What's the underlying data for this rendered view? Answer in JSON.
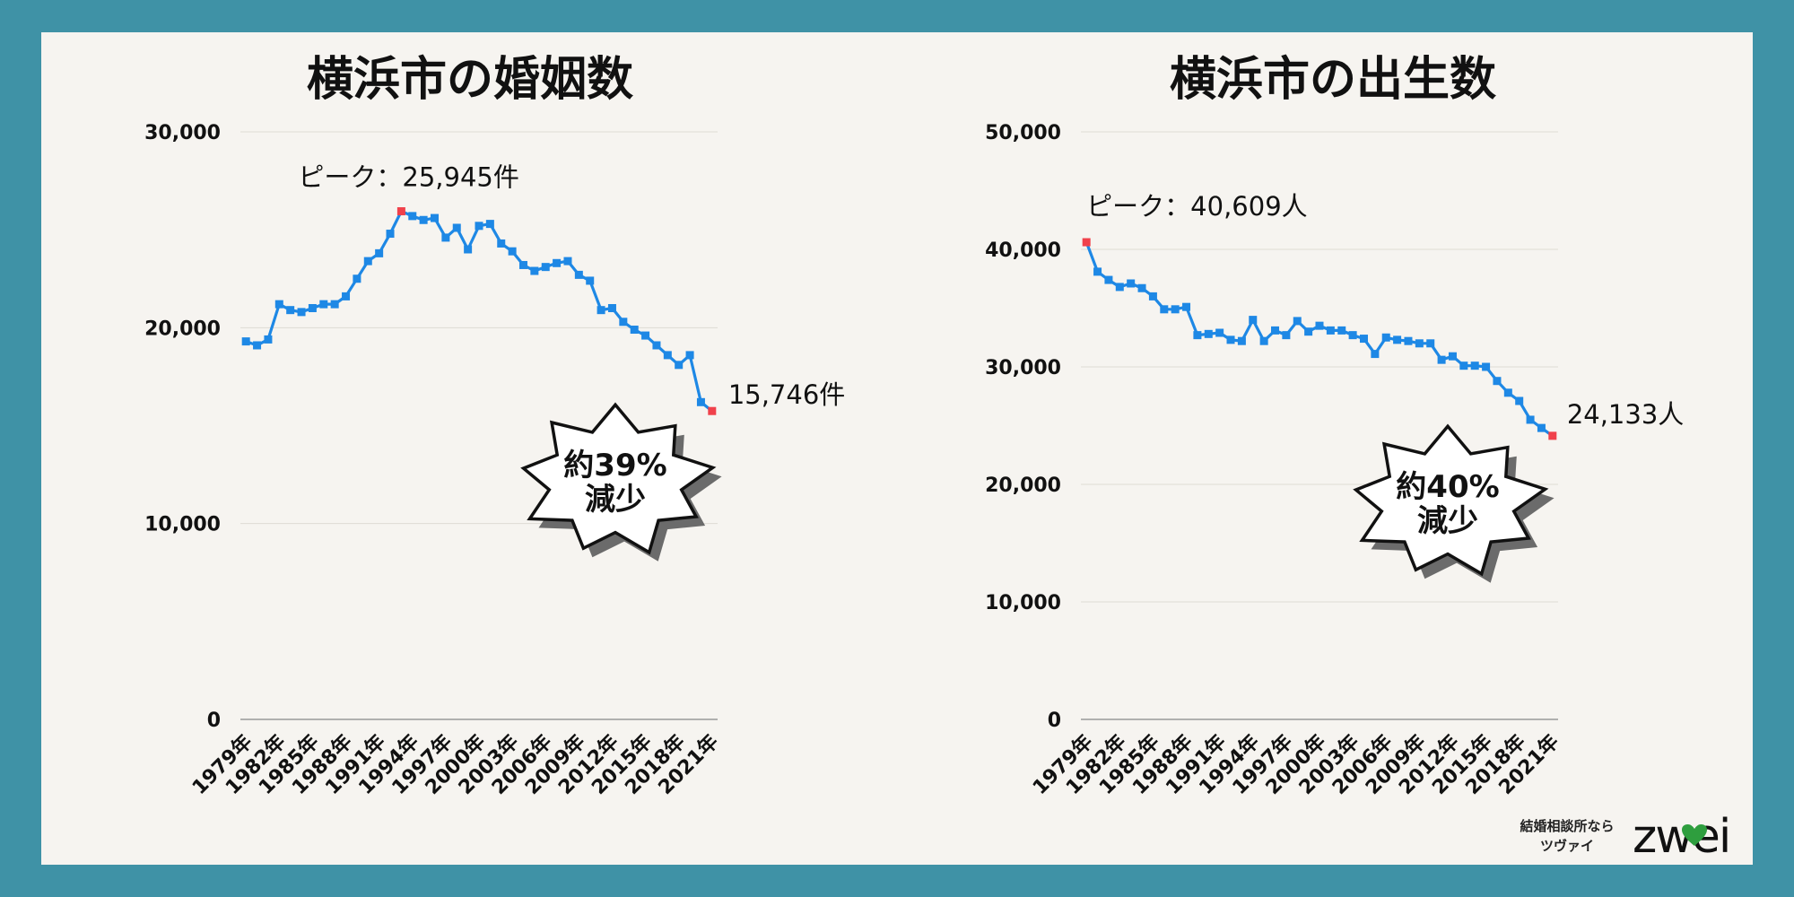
{
  "chart_data": [
    {
      "type": "line",
      "title": "横浜市の婚姻数",
      "ylim": [
        0,
        30000
      ],
      "yticks": [
        "0",
        "10,000",
        "20,000",
        "30,000"
      ],
      "x": [
        "1979年",
        "1980年",
        "1981年",
        "1982年",
        "1983年",
        "1984年",
        "1985年",
        "1986年",
        "1987年",
        "1988年",
        "1989年",
        "1990年",
        "1991年",
        "1992年",
        "1993年",
        "1994年",
        "1995年",
        "1996年",
        "1997年",
        "1998年",
        "1999年",
        "2000年",
        "2001年",
        "2002年",
        "2003年",
        "2004年",
        "2005年",
        "2006年",
        "2007年",
        "2008年",
        "2009年",
        "2010年",
        "2011年",
        "2012年",
        "2013年",
        "2014年",
        "2015年",
        "2016年",
        "2017年",
        "2018年",
        "2019年",
        "2020年",
        "2021年"
      ],
      "xticks": [
        "1979年",
        "1982年",
        "1985年",
        "1988年",
        "1991年",
        "1994年",
        "1997年",
        "2000年",
        "2003年",
        "2006年",
        "2009年",
        "2012年",
        "2015年",
        "2018年",
        "2021年"
      ],
      "values": [
        19300,
        19100,
        19400,
        21200,
        20900,
        20800,
        21000,
        21200,
        21200,
        21600,
        22500,
        23400,
        23800,
        24800,
        25945,
        25700,
        25500,
        25600,
        24600,
        25100,
        24000,
        25200,
        25300,
        24300,
        23900,
        23200,
        22900,
        23100,
        23300,
        23400,
        22700,
        22400,
        20900,
        21000,
        20300,
        19900,
        19600,
        19100,
        18600,
        18100,
        18600,
        16200,
        15746
      ],
      "grid": true,
      "annotations": {
        "peak": "ピーク：25,945件",
        "last": "15,746件"
      },
      "burst": [
        "約39%",
        "減少"
      ],
      "colors": {
        "line": "#1e88e5",
        "highlight": "#f0414b"
      }
    },
    {
      "type": "line",
      "title": "横浜市の出生数",
      "ylim": [
        0,
        50000
      ],
      "yticks": [
        "0",
        "10,000",
        "20,000",
        "30,000",
        "40,000",
        "50,000"
      ],
      "x": [
        "1979年",
        "1980年",
        "1981年",
        "1982年",
        "1983年",
        "1984年",
        "1985年",
        "1986年",
        "1987年",
        "1988年",
        "1989年",
        "1990年",
        "1991年",
        "1992年",
        "1993年",
        "1994年",
        "1995年",
        "1996年",
        "1997年",
        "1998年",
        "1999年",
        "2000年",
        "2001年",
        "2002年",
        "2003年",
        "2004年",
        "2005年",
        "2006年",
        "2007年",
        "2008年",
        "2009年",
        "2010年",
        "2011年",
        "2012年",
        "2013年",
        "2014年",
        "2015年",
        "2016年",
        "2017年",
        "2018年",
        "2019年",
        "2020年",
        "2021年"
      ],
      "xticks": [
        "1979年",
        "1982年",
        "1985年",
        "1988年",
        "1991年",
        "1994年",
        "1997年",
        "2000年",
        "2003年",
        "2006年",
        "2009年",
        "2012年",
        "2015年",
        "2018年",
        "2021年"
      ],
      "values": [
        40609,
        38100,
        37400,
        36800,
        37100,
        36700,
        36000,
        34900,
        34900,
        35100,
        32700,
        32800,
        32900,
        32300,
        32200,
        34000,
        32200,
        33100,
        32700,
        33900,
        33000,
        33500,
        33100,
        33100,
        32700,
        32400,
        31100,
        32500,
        32300,
        32200,
        32000,
        32000,
        30600,
        30900,
        30100,
        30100,
        30000,
        28800,
        27800,
        27100,
        25500,
        24800,
        24133
      ],
      "grid": true,
      "annotations": {
        "peak": "ピーク：40,609人",
        "last": "24,133人"
      },
      "burst": [
        "約40%",
        "減少"
      ],
      "colors": {
        "line": "#1e88e5",
        "highlight": "#f0414b"
      }
    }
  ],
  "brand": {
    "tagline_1": "結婚相談所なら",
    "tagline_2": "ツヴァイ",
    "logo_text": "zwei"
  },
  "colors": {
    "background": "#3f92a6",
    "panel": "#f6f4f0",
    "logo_heart": "#2e9e3e"
  }
}
